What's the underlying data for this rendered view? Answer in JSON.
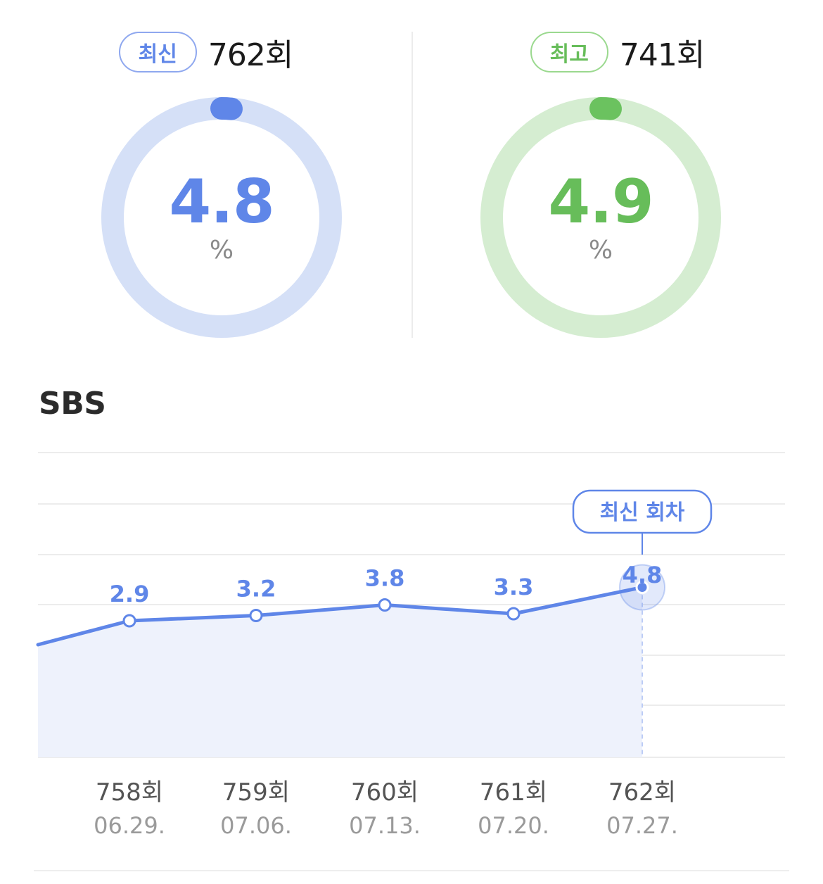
{
  "summary": {
    "latest": {
      "badge": "최신",
      "episode": "762회",
      "rating": "4.8",
      "rating_value": 4.8,
      "unit": "%",
      "color": "#5f86e8",
      "track_color": "#d5e0f7"
    },
    "best": {
      "badge": "최고",
      "episode": "741회",
      "rating": "4.9",
      "rating_value": 4.9,
      "unit": "%",
      "color": "#6bc25f",
      "track_color": "#d5edd1"
    }
  },
  "channel": "SBS",
  "chart_data": {
    "type": "area",
    "categories": [
      "758회",
      "759회",
      "760회",
      "761회",
      "762회"
    ],
    "dates": [
      "06.29.",
      "07.06.",
      "07.13.",
      "07.20.",
      "07.27."
    ],
    "series": [
      {
        "values": [
          2.9,
          3.2,
          3.8,
          3.3,
          4.8
        ],
        "labels": [
          "2.9",
          "3.2",
          "3.8",
          "3.3",
          "4.8"
        ],
        "color": "#5f86e8",
        "fill_color": "#eef2fc"
      }
    ],
    "callout": "최신 회차",
    "callout_index": 4,
    "grid": true
  }
}
